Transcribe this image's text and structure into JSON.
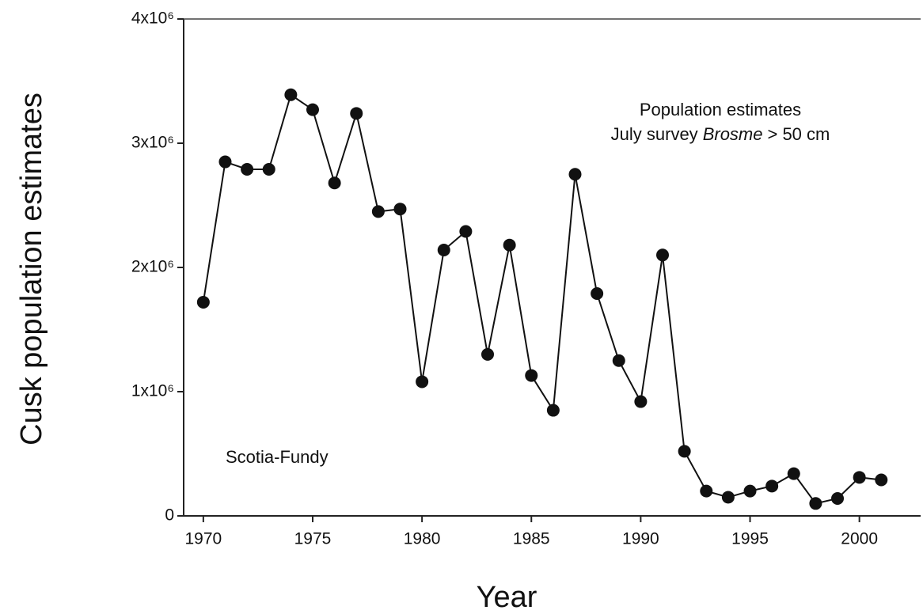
{
  "chart_data": {
    "type": "line",
    "x_label": "Year",
    "y_label": "Cusk population estimates",
    "annotations": {
      "title": "Population estimates",
      "subtitle": [
        "July survey",
        "Brosme",
        "> 50 cm"
      ],
      "region": "Scotia-Fundy"
    },
    "x": [
      1970,
      1971,
      1972,
      1973,
      1974,
      1975,
      1976,
      1977,
      1978,
      1979,
      1980,
      1981,
      1982,
      1983,
      1984,
      1985,
      1986,
      1987,
      1988,
      1989,
      1990,
      1991,
      1992,
      1993,
      1994,
      1995,
      1996,
      1997,
      1998,
      1999,
      2000,
      2001
    ],
    "series": [
      {
        "name": "Scotia-Fundy",
        "color": "#111111",
        "values": [
          1720000,
          2850000,
          2790000,
          2790000,
          3390000,
          3270000,
          2680000,
          3240000,
          2450000,
          2470000,
          1080000,
          2140000,
          2290000,
          1300000,
          2180000,
          1130000,
          850000,
          2750000,
          1790000,
          1250000,
          920000,
          2100000,
          520000,
          200000,
          150000,
          200000,
          240000,
          340000,
          100000,
          140000,
          310000,
          290000
        ]
      }
    ],
    "xlim": [
      1969.1,
      2002.8
    ],
    "ylim": [
      0,
      4000000
    ],
    "xticks": [
      1970,
      1975,
      1980,
      1985,
      1990,
      1995,
      2000
    ],
    "yticks": [
      0,
      {
        "value": 1000000,
        "label": "1x10⁶"
      },
      {
        "value": 2000000,
        "label": "2x10⁶"
      },
      {
        "value": 3000000,
        "label": "3x10⁶"
      },
      {
        "value": 4000000,
        "label": "4x10⁶"
      }
    ]
  }
}
